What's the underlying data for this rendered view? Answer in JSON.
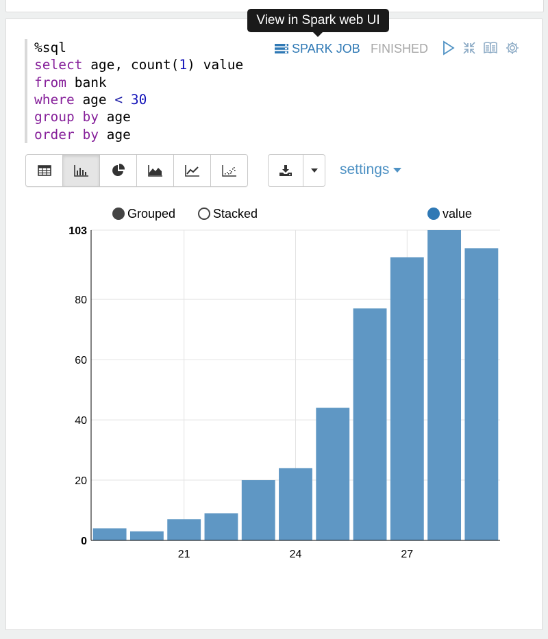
{
  "paragraph": {
    "code_lines": [
      [
        {
          "t": "%sql",
          "c": "plain"
        }
      ],
      [
        {
          "t": "select",
          "c": "kw"
        },
        {
          "t": " age, ",
          "c": "plain"
        },
        {
          "t": "count",
          "c": "fn"
        },
        {
          "t": "(",
          "c": "plain"
        },
        {
          "t": "1",
          "c": "num"
        },
        {
          "t": ") value",
          "c": "plain"
        }
      ],
      [
        {
          "t": "from",
          "c": "kw"
        },
        {
          "t": " bank",
          "c": "plain"
        }
      ],
      [
        {
          "t": "where",
          "c": "kw"
        },
        {
          "t": " age ",
          "c": "plain"
        },
        {
          "t": "<",
          "c": "op"
        },
        {
          "t": " ",
          "c": "plain"
        },
        {
          "t": "30",
          "c": "num"
        }
      ],
      [
        {
          "t": "group",
          "c": "kw"
        },
        {
          "t": " ",
          "c": "plain"
        },
        {
          "t": "by",
          "c": "kw"
        },
        {
          "t": " age",
          "c": "plain"
        }
      ],
      [
        {
          "t": "order",
          "c": "kw"
        },
        {
          "t": " ",
          "c": "plain"
        },
        {
          "t": "by",
          "c": "kw"
        },
        {
          "t": " age",
          "c": "plain"
        }
      ]
    ],
    "tooltip": "View in Spark web UI",
    "spark_job_label": "SPARK JOB",
    "status": "FINISHED"
  },
  "toolbar": {
    "views": [
      "table-icon",
      "bar-chart-icon",
      "pie-chart-icon",
      "area-chart-icon",
      "line-chart-icon",
      "scatter-chart-icon"
    ],
    "active_view": "bar-chart-icon",
    "settings_label": "settings"
  },
  "legend": {
    "grouped_label": "Grouped",
    "stacked_label": "Stacked",
    "selected_mode": "Grouped",
    "series_label": "value"
  },
  "colors": {
    "bar": "#5f97c4",
    "accent": "#4f92c4",
    "series_dot": "#2f79b5"
  },
  "chart_data": {
    "type": "bar",
    "x": [
      19,
      20,
      21,
      22,
      23,
      24,
      25,
      26,
      27,
      28,
      29
    ],
    "series": [
      {
        "name": "value",
        "values": [
          4,
          3,
          7,
          9,
          20,
          24,
          44,
          77,
          94,
          103,
          97
        ]
      }
    ],
    "x_ticks": [
      21,
      24,
      27
    ],
    "y_ticks": [
      0,
      20,
      40,
      60,
      80,
      103
    ],
    "ylim": [
      0,
      103
    ],
    "grid": true,
    "legend_position": "top-right"
  }
}
